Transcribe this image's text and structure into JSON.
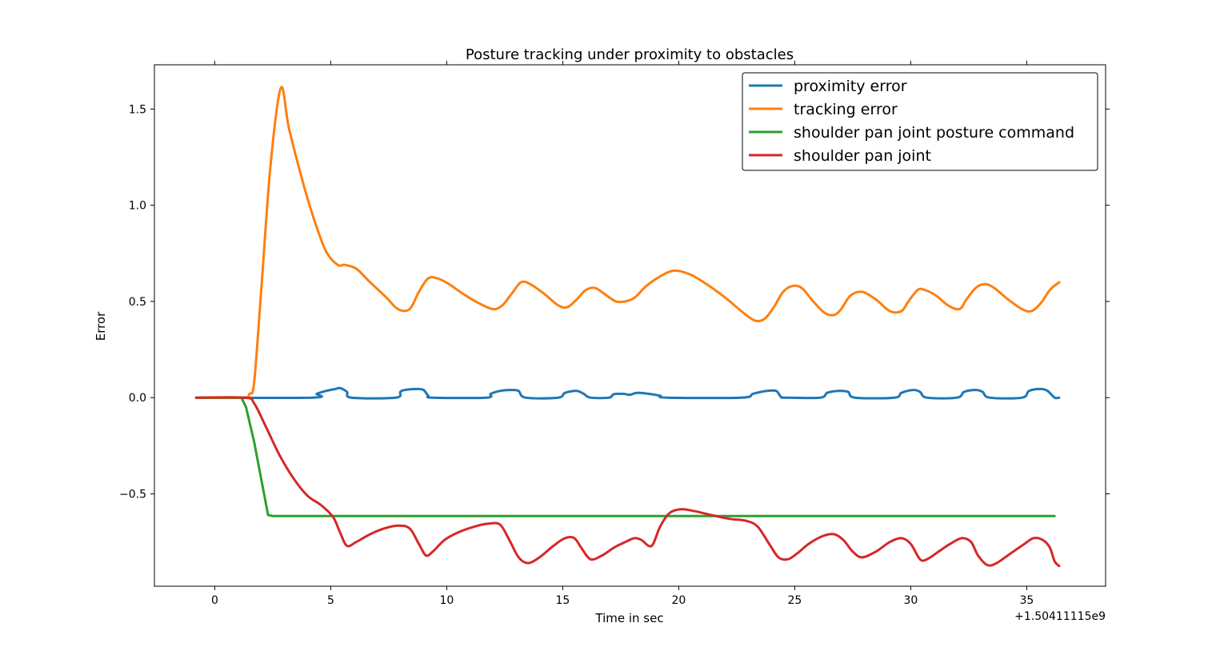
{
  "chart_data": {
    "type": "line",
    "title": "Posture tracking under proximity to obstacles",
    "xlabel": "Time in sec",
    "ylabel": "Error",
    "x_offset_label": "+1.50411115e9",
    "xlim": [
      -2.6,
      38.4
    ],
    "ylim": [
      -0.98,
      1.73
    ],
    "xticks": [
      0,
      5,
      10,
      15,
      20,
      25,
      30,
      35
    ],
    "yticks": [
      1.5,
      1.0,
      0.5,
      0.0,
      -0.5
    ],
    "xtick_labels": [
      "0",
      "5",
      "10",
      "15",
      "20",
      "25",
      "30",
      "35"
    ],
    "ytick_labels": [
      "1.5",
      "1.0",
      "0.5",
      "0.0",
      "−0.5"
    ],
    "grid": false,
    "legend_position": "top-right",
    "series": [
      {
        "name": "proximity error",
        "color": "#1f77b4",
        "x": [
          -0.8,
          4.2,
          4.4,
          4.8,
          5.2,
          5.4,
          5.7,
          5.9,
          7.8,
          8.0,
          8.2,
          8.7,
          9.0,
          9.2,
          9.4,
          11.7,
          11.9,
          12.3,
          12.8,
          13.1,
          13.4,
          14.8,
          15.1,
          15.6,
          15.9,
          16.2,
          17.0,
          17.2,
          17.6,
          17.9,
          18.2,
          18.7,
          19.2,
          19.5,
          22.7,
          23.2,
          23.8,
          24.2,
          24.4,
          24.6,
          26.1,
          26.4,
          26.9,
          27.3,
          27.6,
          29.3,
          29.6,
          30.1,
          30.4,
          30.7,
          32.0,
          32.3,
          32.8,
          33.1,
          33.4,
          34.8,
          35.1,
          35.6,
          35.9,
          36.2,
          36.4
        ],
        "y": [
          0.0,
          0.0,
          0.02,
          0.035,
          0.045,
          0.05,
          0.03,
          0.0,
          0.0,
          0.03,
          0.04,
          0.045,
          0.04,
          0.01,
          0.0,
          0.0,
          0.02,
          0.035,
          0.04,
          0.035,
          0.0,
          0.0,
          0.025,
          0.035,
          0.02,
          0.0,
          0.0,
          0.018,
          0.02,
          0.015,
          0.025,
          0.02,
          0.01,
          0.0,
          0.0,
          0.02,
          0.035,
          0.035,
          0.005,
          0.0,
          0.0,
          0.025,
          0.035,
          0.03,
          0.0,
          0.0,
          0.025,
          0.04,
          0.03,
          0.0,
          0.0,
          0.03,
          0.04,
          0.03,
          0.0,
          0.0,
          0.035,
          0.045,
          0.035,
          0.0,
          0.0
        ]
      },
      {
        "name": "tracking error",
        "color": "#ff7f0e",
        "x": [
          -0.8,
          1.2,
          1.5,
          1.7,
          2.0,
          2.4,
          2.85,
          3.2,
          3.8,
          4.3,
          4.8,
          5.3,
          5.6,
          6.1,
          6.7,
          7.4,
          7.9,
          8.4,
          8.8,
          9.2,
          9.6,
          10.1,
          10.7,
          11.4,
          12.0,
          12.4,
          12.8,
          13.2,
          13.6,
          14.2,
          14.8,
          15.2,
          15.6,
          16.0,
          16.4,
          16.9,
          17.3,
          17.7,
          18.1,
          18.6,
          19.2,
          19.8,
          20.5,
          21.2,
          22.0,
          22.8,
          23.3,
          23.7,
          24.1,
          24.5,
          24.9,
          25.3,
          25.8,
          26.3,
          26.7,
          27.0,
          27.4,
          27.9,
          28.5,
          29.1,
          29.6,
          29.9,
          30.3,
          30.6,
          31.1,
          31.6,
          32.1,
          32.4,
          32.8,
          33.2,
          33.6,
          34.2,
          34.8,
          35.2,
          35.6,
          36.0,
          36.4
        ],
        "y": [
          0.0,
          0.0,
          0.02,
          0.08,
          0.55,
          1.2,
          1.61,
          1.4,
          1.12,
          0.92,
          0.76,
          0.69,
          0.69,
          0.67,
          0.6,
          0.52,
          0.46,
          0.46,
          0.55,
          0.62,
          0.62,
          0.59,
          0.54,
          0.49,
          0.46,
          0.48,
          0.54,
          0.6,
          0.59,
          0.54,
          0.48,
          0.47,
          0.51,
          0.56,
          0.57,
          0.53,
          0.5,
          0.5,
          0.52,
          0.58,
          0.63,
          0.66,
          0.64,
          0.59,
          0.52,
          0.44,
          0.4,
          0.41,
          0.47,
          0.55,
          0.58,
          0.57,
          0.5,
          0.44,
          0.43,
          0.46,
          0.53,
          0.55,
          0.51,
          0.45,
          0.45,
          0.5,
          0.56,
          0.56,
          0.53,
          0.48,
          0.46,
          0.51,
          0.57,
          0.59,
          0.57,
          0.51,
          0.46,
          0.45,
          0.49,
          0.56,
          0.6
        ]
      },
      {
        "name": "shoulder pan joint posture command",
        "color": "#2ca02c",
        "x": [
          -0.8,
          1.15,
          1.35,
          1.7,
          2.3,
          2.5,
          36.2
        ],
        "y": [
          0.0,
          0.0,
          -0.05,
          -0.23,
          -0.61,
          -0.615,
          -0.615
        ]
      },
      {
        "name": "shoulder pan joint",
        "color": "#d62728",
        "x": [
          -0.8,
          1.3,
          1.7,
          2.2,
          2.8,
          3.4,
          4.0,
          4.6,
          5.1,
          5.4,
          5.7,
          6.1,
          6.7,
          7.3,
          7.9,
          8.4,
          8.8,
          9.1,
          9.4,
          9.9,
          10.5,
          11.2,
          11.8,
          12.3,
          12.7,
          13.1,
          13.5,
          14.0,
          14.6,
          15.1,
          15.5,
          15.8,
          16.2,
          16.7,
          17.2,
          17.7,
          18.1,
          18.4,
          18.7,
          18.9,
          19.2,
          19.6,
          20.1,
          20.7,
          21.4,
          22.2,
          22.9,
          23.4,
          23.9,
          24.3,
          24.7,
          25.1,
          25.6,
          26.2,
          26.7,
          27.1,
          27.5,
          27.9,
          28.5,
          29.1,
          29.6,
          30.0,
          30.4,
          30.7,
          31.2,
          31.7,
          32.2,
          32.6,
          32.9,
          33.3,
          33.7,
          34.3,
          34.9,
          35.3,
          35.7,
          36.0,
          36.2,
          36.4
        ],
        "y": [
          0.0,
          0.0,
          -0.03,
          -0.15,
          -0.3,
          -0.42,
          -0.51,
          -0.56,
          -0.62,
          -0.7,
          -0.77,
          -0.75,
          -0.71,
          -0.68,
          -0.665,
          -0.68,
          -0.76,
          -0.82,
          -0.8,
          -0.74,
          -0.7,
          -0.67,
          -0.655,
          -0.66,
          -0.74,
          -0.83,
          -0.86,
          -0.83,
          -0.77,
          -0.73,
          -0.73,
          -0.78,
          -0.84,
          -0.82,
          -0.78,
          -0.75,
          -0.73,
          -0.74,
          -0.77,
          -0.76,
          -0.67,
          -0.6,
          -0.58,
          -0.59,
          -0.61,
          -0.63,
          -0.64,
          -0.67,
          -0.76,
          -0.83,
          -0.84,
          -0.81,
          -0.76,
          -0.72,
          -0.71,
          -0.74,
          -0.8,
          -0.83,
          -0.8,
          -0.75,
          -0.73,
          -0.76,
          -0.84,
          -0.84,
          -0.8,
          -0.76,
          -0.73,
          -0.75,
          -0.82,
          -0.87,
          -0.86,
          -0.81,
          -0.76,
          -0.73,
          -0.74,
          -0.78,
          -0.85,
          -0.875
        ]
      }
    ]
  }
}
